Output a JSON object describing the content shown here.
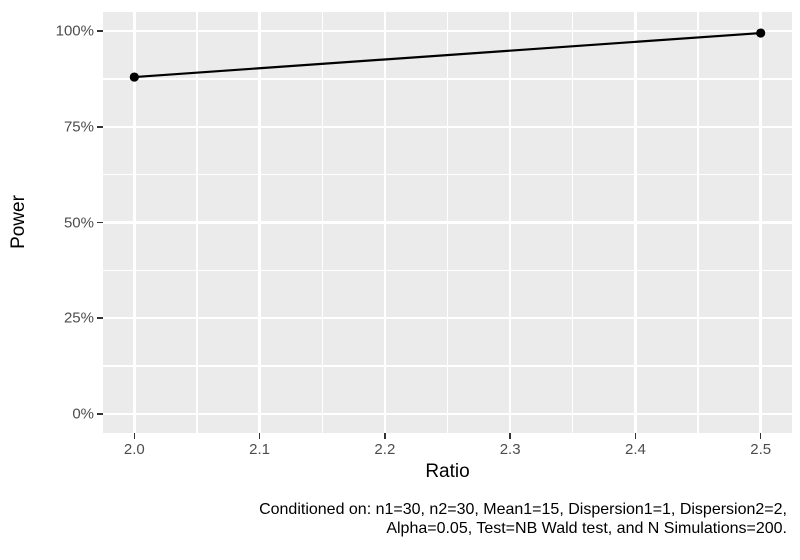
{
  "chart_data": {
    "type": "line",
    "title": "",
    "xlabel": "Ratio",
    "ylabel": "Power",
    "x": [
      2.0,
      2.5
    ],
    "y": [
      0.88,
      0.995
    ],
    "series": [
      {
        "name": "Power",
        "x": [
          2.0,
          2.5
        ],
        "values": [
          0.88,
          0.995
        ]
      }
    ],
    "xlim": [
      1.975,
      2.525
    ],
    "ylim": [
      -0.05,
      1.05
    ],
    "x_ticks": [
      2.0,
      2.1,
      2.2,
      2.3,
      2.4,
      2.5
    ],
    "x_tick_labels": [
      "2.0",
      "2.1",
      "2.2",
      "2.3",
      "2.4",
      "2.5"
    ],
    "x_minor_ticks": [
      2.05,
      2.15,
      2.25,
      2.35,
      2.45
    ],
    "y_ticks": [
      0,
      0.25,
      0.5,
      0.75,
      1.0
    ],
    "y_tick_labels": [
      "0%",
      "25%",
      "50%",
      "75%",
      "100%"
    ],
    "y_minor_ticks": [
      0.125,
      0.375,
      0.625,
      0.875
    ],
    "grid": true,
    "legend": false,
    "caption_line1": "Conditioned on: n1=30, n2=30, Mean1=15, Dispersion1=1, Dispersion2=2,",
    "caption_line2": "Alpha=0.05, Test=NB Wald test, and N Simulations=200.",
    "colors": {
      "background": "#FFFFFF",
      "panel_background": "#EBEBEB",
      "grid_major": "#FFFFFF",
      "grid_minor": "#FFFFFF",
      "line": "#000000",
      "point": "#000000",
      "tick_label": "#4D4D4D",
      "tick_mark": "#333333",
      "axis_title": "#000000",
      "caption": "#000000"
    }
  }
}
